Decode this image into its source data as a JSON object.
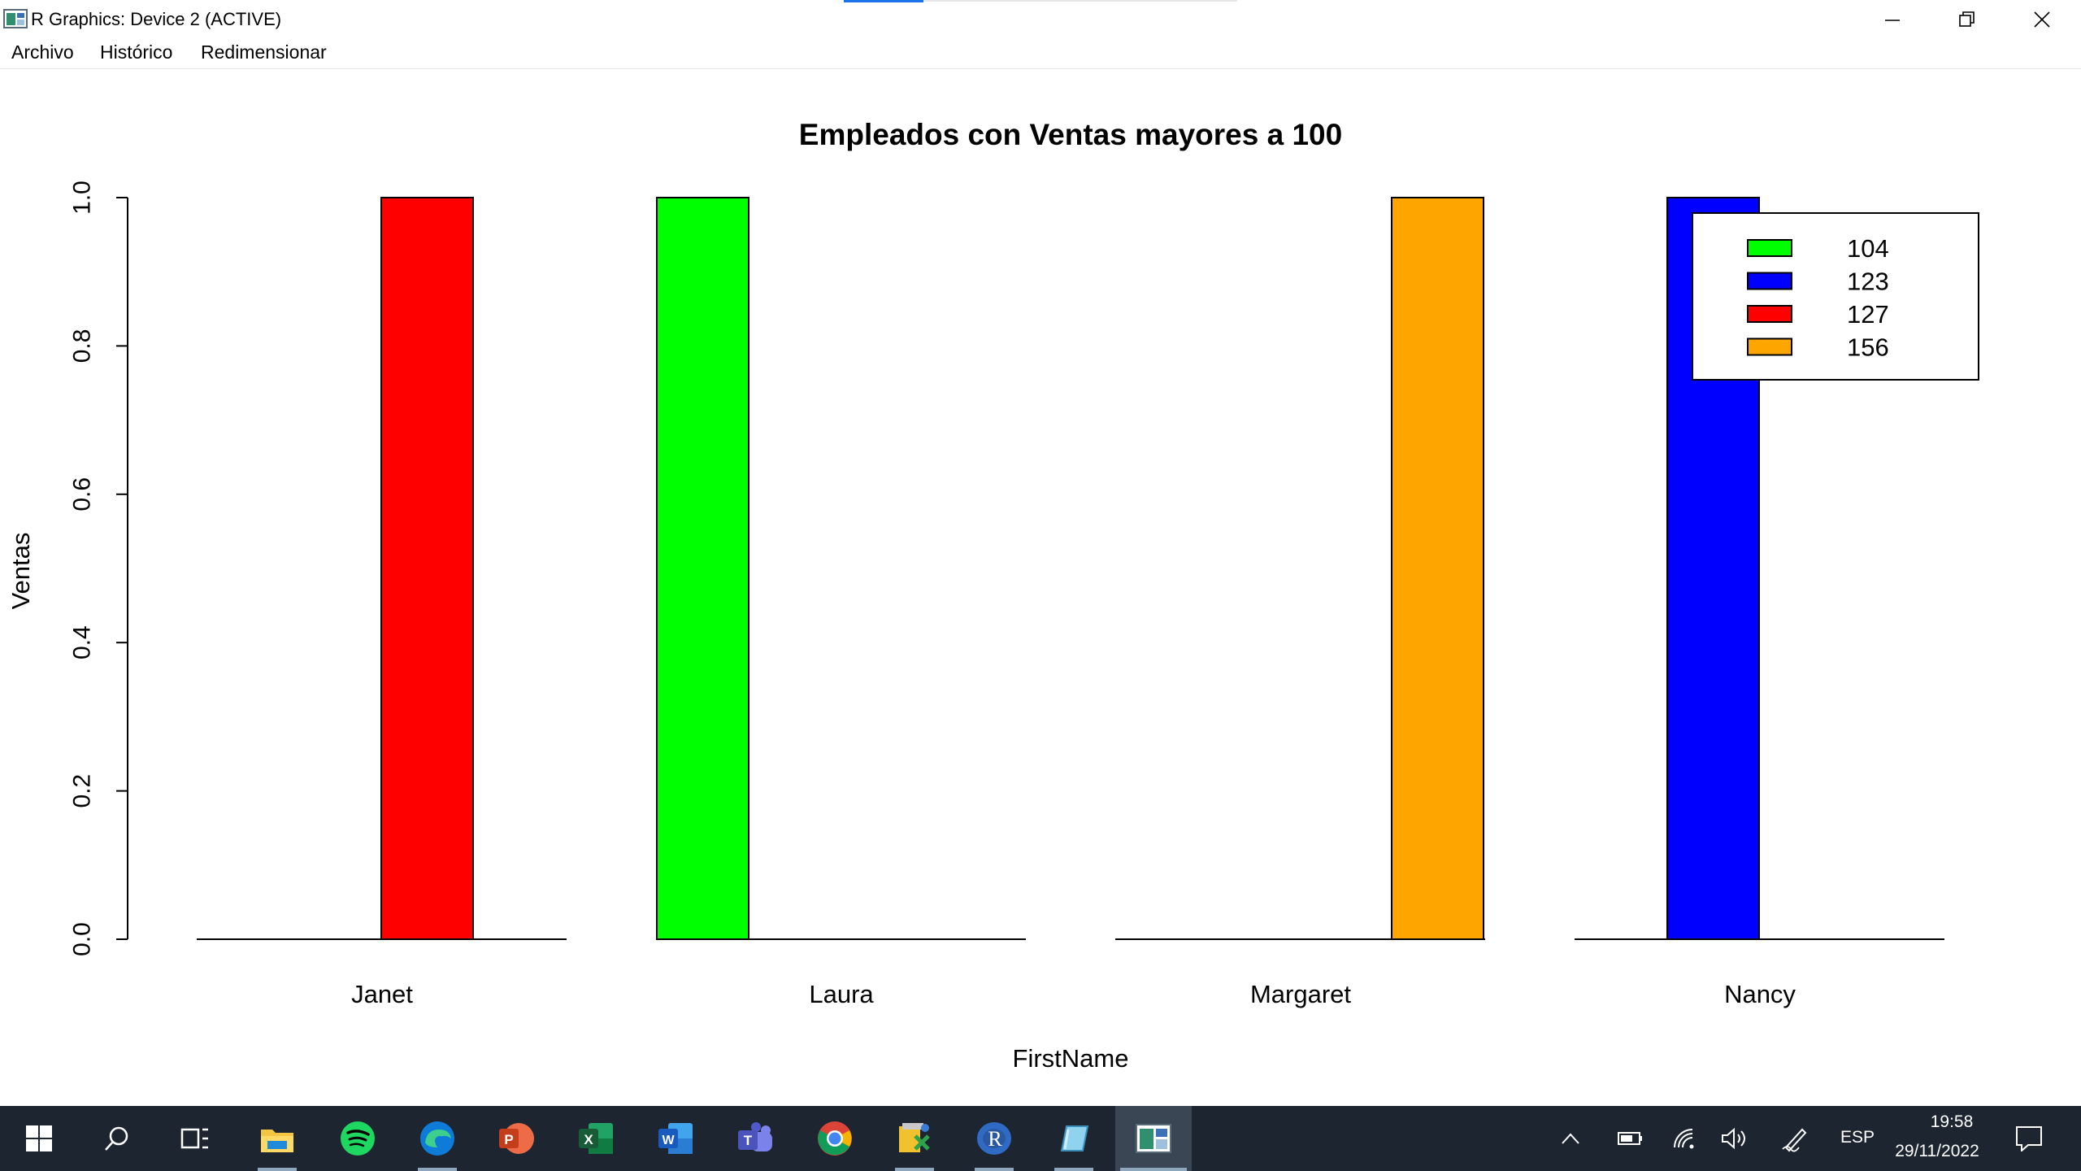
{
  "window": {
    "title": "R Graphics: Device 2 (ACTIVE)",
    "controls": [
      "minimize",
      "restore",
      "close"
    ]
  },
  "menu": [
    "Archivo",
    "Histórico",
    "Redimensionar"
  ],
  "chart_data": {
    "type": "bar",
    "title": "Empleados con Ventas mayores a 100",
    "xlabel": "FirstName",
    "ylabel": "Ventas",
    "ylim": [
      0,
      1
    ],
    "yticks": [
      "0.0",
      "0.2",
      "0.4",
      "0.6",
      "0.8",
      "1.0"
    ],
    "categories": [
      "Janet",
      "Laura",
      "Margaret",
      "Nancy"
    ],
    "grouping": "beside",
    "series": [
      {
        "name": "104",
        "color": "#00ff00",
        "values": [
          0,
          1,
          0,
          0
        ]
      },
      {
        "name": "123",
        "color": "#0000ff",
        "values": [
          0,
          0,
          0,
          1
        ]
      },
      {
        "name": "127",
        "color": "#ff0000",
        "values": [
          1,
          0,
          0,
          0
        ]
      },
      {
        "name": "156",
        "color": "#ffa500",
        "values": [
          0,
          0,
          1,
          0
        ]
      }
    ],
    "legend_position": "top-right",
    "grid": false
  },
  "taskbar": {
    "apps": [
      "start-icon",
      "search-icon",
      "task-view-icon",
      "file-explorer-icon",
      "spotify-icon",
      "edge-icon",
      "powerpoint-icon",
      "excel-icon",
      "word-icon",
      "teams-icon",
      "chrome-icon",
      "sql-tool-icon",
      "r-icon",
      "notepad-icon",
      "r-graphics-icon"
    ],
    "language": "ESP",
    "time": "19:58",
    "date": "29/11/2022"
  }
}
